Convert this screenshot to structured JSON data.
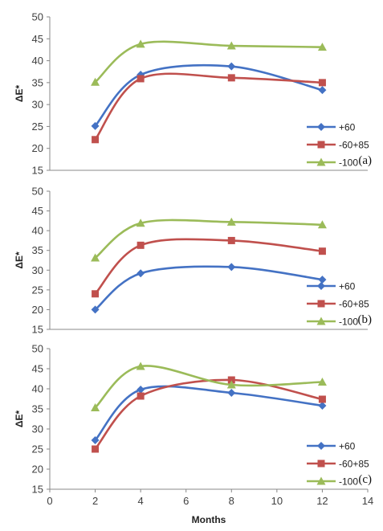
{
  "colors": {
    "s60": "#4472C4",
    "s6085": "#C0504D",
    "s100": "#9BBB59"
  },
  "chart_data": [
    {
      "type": "line",
      "panel_label": "(a)",
      "ylabel": "ΔE*",
      "xlabel": "",
      "xlim": [
        0,
        14
      ],
      "ylim": [
        15,
        50
      ],
      "yticks": [
        15,
        20,
        25,
        30,
        35,
        40,
        45,
        50
      ],
      "x": [
        2,
        4,
        8,
        12
      ],
      "legend_position": "right",
      "series": [
        {
          "name": "+60",
          "marker": "diamond",
          "values": [
            25.1,
            36.8,
            38.7,
            33.3
          ]
        },
        {
          "name": "-60+85",
          "marker": "square",
          "values": [
            22.0,
            35.9,
            36.1,
            35.0
          ]
        },
        {
          "name": "-100",
          "marker": "triangle",
          "values": [
            35.1,
            43.8,
            43.4,
            43.1
          ]
        }
      ]
    },
    {
      "type": "line",
      "panel_label": "(b)",
      "ylabel": "ΔE*",
      "xlabel": "",
      "xlim": [
        0,
        14
      ],
      "ylim": [
        15,
        50
      ],
      "yticks": [
        15,
        20,
        25,
        30,
        35,
        40,
        45,
        50
      ],
      "x": [
        2,
        4,
        8,
        12
      ],
      "legend_position": "right",
      "series": [
        {
          "name": "+60",
          "marker": "diamond",
          "values": [
            20.0,
            29.2,
            30.8,
            27.6
          ]
        },
        {
          "name": "-60+85",
          "marker": "square",
          "values": [
            24.0,
            36.3,
            37.5,
            34.8
          ]
        },
        {
          "name": "-100",
          "marker": "triangle",
          "values": [
            33.1,
            41.9,
            42.2,
            41.5
          ]
        }
      ]
    },
    {
      "type": "line",
      "panel_label": "(c)",
      "ylabel": "ΔE*",
      "xlabel": "Months",
      "xlim": [
        0,
        14
      ],
      "ylim": [
        15,
        50
      ],
      "yticks": [
        15,
        20,
        25,
        30,
        35,
        40,
        45,
        50
      ],
      "xticks": [
        0,
        2,
        4,
        6,
        8,
        10,
        12,
        14
      ],
      "x": [
        2,
        4,
        8,
        12
      ],
      "legend_position": "right",
      "series": [
        {
          "name": "+60",
          "marker": "diamond",
          "values": [
            27.2,
            39.8,
            39.0,
            35.8
          ]
        },
        {
          "name": "-60+85",
          "marker": "square",
          "values": [
            25.0,
            38.2,
            42.2,
            37.4
          ]
        },
        {
          "name": "-100",
          "marker": "triangle",
          "values": [
            35.3,
            45.6,
            41.0,
            41.7
          ]
        }
      ]
    }
  ]
}
